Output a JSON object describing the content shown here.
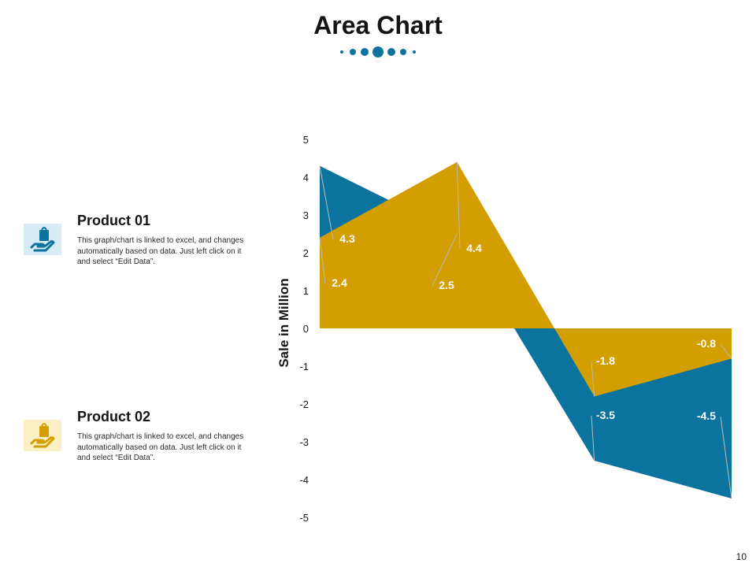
{
  "page": {
    "title": "Area Chart",
    "page_number": "10"
  },
  "colors": {
    "series1": "#0a749f",
    "series2": "#d39e00",
    "dots": "#0a749f"
  },
  "legend": [
    {
      "name": "Product 01",
      "description": "This graph/chart is linked to excel, and changes automatically based on data. Just left click on it and select “Edit Data”.",
      "icon": "hand-holding-bag-icon"
    },
    {
      "name": "Product 02",
      "description": "This graph/chart is linked to excel, and changes automatically based on data. Just left click on it and select “Edit Data”.",
      "icon": "hand-holding-bag-icon"
    }
  ],
  "chart_data": {
    "type": "area",
    "title": "",
    "xlabel": "",
    "ylabel": "Sale in Million",
    "ylim": [
      -5,
      5
    ],
    "yticks": [
      5,
      4,
      3,
      2,
      1,
      0,
      -1,
      -2,
      -3,
      -4,
      -5
    ],
    "grid": false,
    "series": [
      {
        "name": "Product 01",
        "values": [
          4.3,
          2.5,
          -3.5,
          -4.5
        ]
      },
      {
        "name": "Product 02",
        "values": [
          2.4,
          4.4,
          -1.8,
          -0.8
        ]
      }
    ]
  }
}
